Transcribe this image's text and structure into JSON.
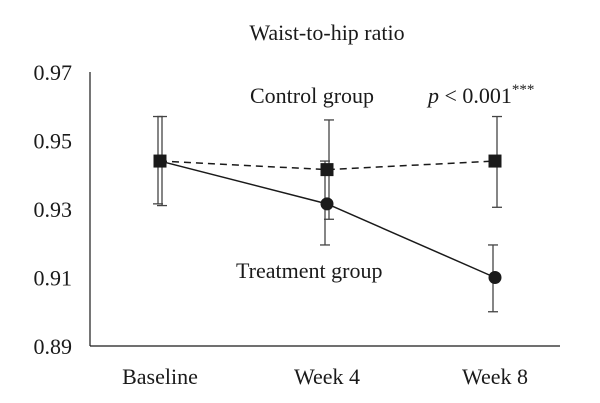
{
  "chart_data": {
    "type": "line",
    "title": "Waist-to-hip ratio",
    "categories": [
      "Baseline",
      "Week 4",
      "Week 8"
    ],
    "ylim": [
      0.89,
      0.97
    ],
    "yticks": [
      "0.89",
      "0.91",
      "0.93",
      "0.95",
      "0.97"
    ],
    "grid": false,
    "series": [
      {
        "name": "Control group",
        "marker": "square",
        "line_style": "dashed",
        "values": [
          0.944,
          0.9415,
          0.944
        ],
        "error_upper": [
          0.957,
          0.956,
          0.957
        ],
        "error_lower": [
          0.931,
          0.927,
          0.9305
        ]
      },
      {
        "name": "Treatment group",
        "marker": "circle",
        "line_style": "solid",
        "values": [
          0.944,
          0.9315,
          0.91
        ],
        "error_upper": [
          0.957,
          0.944,
          0.9195
        ],
        "error_lower": [
          0.9315,
          0.9195,
          0.9
        ]
      }
    ],
    "annotation": {
      "p_symbol": "p",
      "p_rest": " < 0.001",
      "stars": "***"
    }
  }
}
